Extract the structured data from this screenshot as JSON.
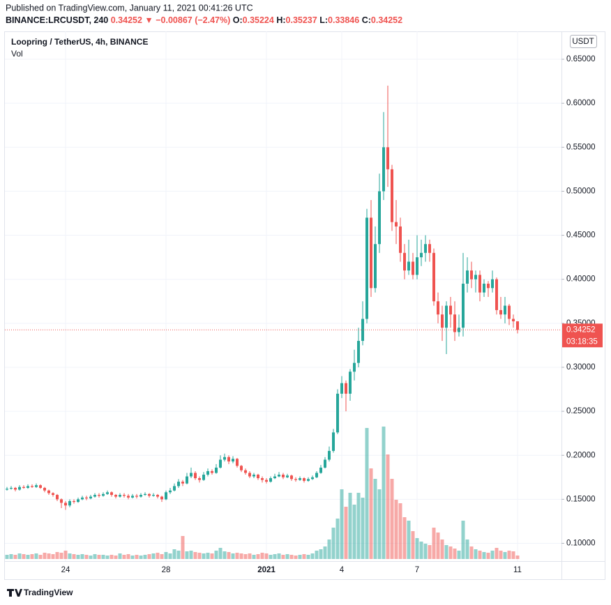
{
  "header": {
    "published": "Published on TradingView.com, January 11, 2021 00:41:26 UTC",
    "symbol": "BINANCE:LRCUSDT, 240",
    "change": "▼ −0.00867 (−2.47%)",
    "o_label": "O:",
    "h_label": "H:",
    "l_label": "L:",
    "c_label": "C:"
  },
  "chart_data": {
    "type": "candlestick",
    "title": "Loopring / TetherUS, 4h, BINANCE",
    "volume_label": "Vol",
    "currency": "USDT",
    "countdown": "03:18:35",
    "logo": "TradingView",
    "up_color": "#26a69a",
    "down_color": "#ef5350",
    "grid": true,
    "ylim": [
      0.0798,
      0.6817
    ],
    "yticks": [
      {
        "value": 0.1,
        "label": "0.10000"
      },
      {
        "value": 0.15,
        "label": "0.15000"
      },
      {
        "value": 0.2,
        "label": "0.20000"
      },
      {
        "value": 0.25,
        "label": "0.25000"
      },
      {
        "value": 0.3,
        "label": "0.30000"
      },
      {
        "value": 0.35,
        "label": "0.35000"
      },
      {
        "value": 0.4,
        "label": "0.40000"
      },
      {
        "value": 0.45,
        "label": "0.45000"
      },
      {
        "value": 0.5,
        "label": "0.50000"
      },
      {
        "value": 0.55,
        "label": "0.55000"
      },
      {
        "value": 0.6,
        "label": "0.60000"
      },
      {
        "value": 0.65,
        "label": "0.65000"
      }
    ],
    "xticks": [
      {
        "value": 14,
        "label": "24"
      },
      {
        "value": 38,
        "label": "28"
      },
      {
        "value": 62,
        "label": "2021"
      },
      {
        "value": 80,
        "label": "4"
      },
      {
        "value": 98,
        "label": "7"
      },
      {
        "value": 122,
        "label": "11"
      }
    ],
    "open": [
      0.161,
      0.162,
      0.163,
      0.161,
      0.164,
      0.163,
      0.165,
      0.164,
      0.166,
      0.163,
      0.16,
      0.157,
      0.155,
      0.15,
      0.146,
      0.143,
      0.148,
      0.147,
      0.15,
      0.152,
      0.151,
      0.153,
      0.155,
      0.154,
      0.156,
      0.158,
      0.155,
      0.153,
      0.155,
      0.154,
      0.152,
      0.154,
      0.153,
      0.155,
      0.156,
      0.154,
      0.155,
      0.153,
      0.15,
      0.158,
      0.16,
      0.165,
      0.17,
      0.168,
      0.176,
      0.18,
      0.174,
      0.172,
      0.178,
      0.182,
      0.18,
      0.186,
      0.195,
      0.198,
      0.193,
      0.196,
      0.188,
      0.183,
      0.18,
      0.176,
      0.178,
      0.174,
      0.172,
      0.17,
      0.174,
      0.176,
      0.178,
      0.175,
      0.177,
      0.173,
      0.172,
      0.174,
      0.171,
      0.173,
      0.175,
      0.18,
      0.186,
      0.195,
      0.205,
      0.226,
      0.27,
      0.282,
      0.27,
      0.295,
      0.305,
      0.33,
      0.355,
      0.47,
      0.39,
      0.44,
      0.5,
      0.55,
      0.525,
      0.465,
      0.46,
      0.43,
      0.41,
      0.42,
      0.405,
      0.425,
      0.43,
      0.44,
      0.43,
      0.375,
      0.36,
      0.345,
      0.37,
      0.36,
      0.34,
      0.345,
      0.395,
      0.41,
      0.4,
      0.405,
      0.385,
      0.395,
      0.39,
      0.4,
      0.365,
      0.36,
      0.37,
      0.355,
      0.35224
    ],
    "high": [
      0.164,
      0.165,
      0.164,
      0.166,
      0.166,
      0.167,
      0.167,
      0.168,
      0.167,
      0.164,
      0.161,
      0.158,
      0.156,
      0.151,
      0.148,
      0.15,
      0.15,
      0.152,
      0.154,
      0.154,
      0.155,
      0.157,
      0.157,
      0.158,
      0.16,
      0.159,
      0.156,
      0.157,
      0.157,
      0.156,
      0.156,
      0.156,
      0.157,
      0.158,
      0.157,
      0.157,
      0.156,
      0.154,
      0.16,
      0.163,
      0.168,
      0.173,
      0.172,
      0.18,
      0.186,
      0.182,
      0.176,
      0.181,
      0.185,
      0.184,
      0.19,
      0.2,
      0.202,
      0.2,
      0.199,
      0.197,
      0.189,
      0.185,
      0.182,
      0.18,
      0.179,
      0.176,
      0.174,
      0.176,
      0.179,
      0.181,
      0.18,
      0.179,
      0.178,
      0.175,
      0.176,
      0.175,
      0.175,
      0.177,
      0.182,
      0.189,
      0.198,
      0.21,
      0.23,
      0.275,
      0.29,
      0.285,
      0.298,
      0.32,
      0.345,
      0.375,
      0.48,
      0.49,
      0.46,
      0.52,
      0.59,
      0.62,
      0.53,
      0.49,
      0.47,
      0.44,
      0.445,
      0.43,
      0.45,
      0.445,
      0.45,
      0.445,
      0.435,
      0.385,
      0.37,
      0.375,
      0.38,
      0.375,
      0.36,
      0.43,
      0.425,
      0.42,
      0.41,
      0.41,
      0.4,
      0.398,
      0.41,
      0.402,
      0.38,
      0.38,
      0.372,
      0.36,
      0.35237
    ],
    "low": [
      0.16,
      0.161,
      0.159,
      0.16,
      0.162,
      0.162,
      0.163,
      0.163,
      0.162,
      0.158,
      0.155,
      0.153,
      0.148,
      0.14,
      0.138,
      0.141,
      0.145,
      0.146,
      0.149,
      0.149,
      0.15,
      0.152,
      0.152,
      0.153,
      0.155,
      0.153,
      0.151,
      0.152,
      0.152,
      0.15,
      0.151,
      0.151,
      0.152,
      0.154,
      0.152,
      0.153,
      0.151,
      0.147,
      0.149,
      0.156,
      0.159,
      0.163,
      0.165,
      0.167,
      0.174,
      0.172,
      0.169,
      0.171,
      0.176,
      0.178,
      0.179,
      0.185,
      0.193,
      0.19,
      0.191,
      0.186,
      0.181,
      0.178,
      0.174,
      0.174,
      0.172,
      0.169,
      0.168,
      0.169,
      0.173,
      0.175,
      0.173,
      0.174,
      0.171,
      0.17,
      0.171,
      0.169,
      0.17,
      0.172,
      0.174,
      0.179,
      0.185,
      0.193,
      0.203,
      0.224,
      0.265,
      0.25,
      0.262,
      0.285,
      0.3,
      0.325,
      0.35,
      0.38,
      0.385,
      0.43,
      0.49,
      0.505,
      0.455,
      0.44,
      0.42,
      0.4,
      0.405,
      0.4,
      0.4,
      0.415,
      0.42,
      0.42,
      0.37,
      0.35,
      0.33,
      0.315,
      0.345,
      0.33,
      0.335,
      0.335,
      0.385,
      0.39,
      0.385,
      0.375,
      0.38,
      0.38,
      0.385,
      0.36,
      0.355,
      0.35,
      0.348,
      0.345,
      0.33846
    ],
    "close": [
      0.162,
      0.163,
      0.161,
      0.164,
      0.163,
      0.165,
      0.164,
      0.166,
      0.163,
      0.16,
      0.157,
      0.155,
      0.15,
      0.146,
      0.143,
      0.148,
      0.147,
      0.15,
      0.152,
      0.151,
      0.153,
      0.155,
      0.154,
      0.156,
      0.158,
      0.155,
      0.153,
      0.155,
      0.154,
      0.152,
      0.154,
      0.153,
      0.155,
      0.156,
      0.154,
      0.155,
      0.153,
      0.15,
      0.158,
      0.16,
      0.165,
      0.17,
      0.168,
      0.176,
      0.18,
      0.174,
      0.172,
      0.178,
      0.182,
      0.18,
      0.186,
      0.195,
      0.198,
      0.193,
      0.196,
      0.188,
      0.183,
      0.18,
      0.176,
      0.178,
      0.174,
      0.172,
      0.17,
      0.174,
      0.176,
      0.178,
      0.175,
      0.177,
      0.173,
      0.172,
      0.174,
      0.171,
      0.173,
      0.175,
      0.18,
      0.186,
      0.195,
      0.205,
      0.226,
      0.27,
      0.282,
      0.27,
      0.295,
      0.305,
      0.33,
      0.355,
      0.47,
      0.39,
      0.44,
      0.5,
      0.55,
      0.525,
      0.465,
      0.46,
      0.43,
      0.41,
      0.42,
      0.405,
      0.425,
      0.43,
      0.44,
      0.43,
      0.375,
      0.36,
      0.345,
      0.37,
      0.36,
      0.34,
      0.345,
      0.395,
      0.41,
      0.4,
      0.405,
      0.385,
      0.395,
      0.39,
      0.4,
      0.365,
      0.36,
      0.37,
      0.355,
      0.35224,
      0.34252
    ],
    "volume": [
      6,
      7,
      6,
      8,
      7,
      6,
      7,
      8,
      6,
      9,
      8,
      7,
      10,
      9,
      12,
      8,
      7,
      6,
      7,
      6,
      5,
      7,
      6,
      6,
      5,
      6,
      5,
      8,
      6,
      7,
      5,
      6,
      5,
      6,
      7,
      8,
      9,
      7,
      10,
      8,
      14,
      12,
      33,
      11,
      12,
      10,
      9,
      8,
      9,
      8,
      12,
      16,
      11,
      10,
      8,
      9,
      8,
      7,
      8,
      6,
      7,
      9,
      8,
      6,
      7,
      8,
      6,
      7,
      6,
      5,
      6,
      7,
      6,
      8,
      12,
      14,
      18,
      28,
      45,
      58,
      100,
      75,
      95,
      78,
      95,
      88,
      188,
      130,
      115,
      100,
      190,
      150,
      115,
      85,
      80,
      60,
      55,
      40,
      30,
      25,
      22,
      20,
      45,
      38,
      28,
      20,
      18,
      15,
      12,
      55,
      28,
      18,
      14,
      12,
      10,
      9,
      12,
      16,
      12,
      10,
      12,
      11,
      5
    ]
  }
}
